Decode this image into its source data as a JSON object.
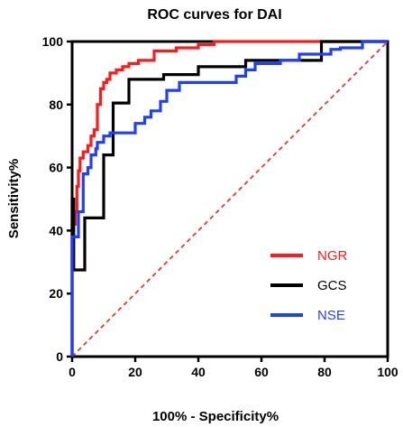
{
  "chart_data": {
    "type": "line",
    "title": "ROC curves for DAI",
    "xlabel": "100% - Specificity%",
    "ylabel": "Sensitivity%",
    "xlim": [
      0,
      100
    ],
    "ylim": [
      0,
      100
    ],
    "x_ticks": [
      0,
      20,
      40,
      60,
      80,
      100
    ],
    "y_ticks": [
      0,
      20,
      40,
      60,
      80,
      100
    ],
    "legend_position": "bottom-right",
    "reference_line": {
      "style": "dashed",
      "color": "#e53935",
      "from": [
        0,
        0
      ],
      "to": [
        100,
        100
      ]
    },
    "series": [
      {
        "name": "NGR",
        "color": "#ff1a1a",
        "points": [
          [
            0,
            0
          ],
          [
            0,
            42
          ],
          [
            1,
            42
          ],
          [
            1,
            46
          ],
          [
            1.5,
            46
          ],
          [
            1.5,
            54
          ],
          [
            2,
            54
          ],
          [
            2,
            59
          ],
          [
            2.5,
            59
          ],
          [
            2.5,
            63
          ],
          [
            3.5,
            63
          ],
          [
            3.5,
            65
          ],
          [
            5,
            65
          ],
          [
            5,
            67
          ],
          [
            6,
            67
          ],
          [
            6,
            70
          ],
          [
            7,
            70
          ],
          [
            7,
            72
          ],
          [
            8,
            72
          ],
          [
            8,
            80
          ],
          [
            9,
            80
          ],
          [
            9,
            85
          ],
          [
            10,
            85
          ],
          [
            10,
            87
          ],
          [
            11,
            87
          ],
          [
            11,
            88
          ],
          [
            12,
            88
          ],
          [
            12,
            90
          ],
          [
            14,
            90
          ],
          [
            14,
            91
          ],
          [
            16,
            91
          ],
          [
            16,
            92
          ],
          [
            18,
            92
          ],
          [
            18,
            93
          ],
          [
            21,
            93
          ],
          [
            21,
            94
          ],
          [
            26,
            94
          ],
          [
            26,
            97
          ],
          [
            33,
            97
          ],
          [
            33,
            98
          ],
          [
            40,
            98
          ],
          [
            40,
            99
          ],
          [
            45,
            99
          ],
          [
            45,
            100
          ],
          [
            100,
            100
          ]
        ]
      },
      {
        "name": "GCS",
        "color": "#000000",
        "points": [
          [
            0,
            0
          ],
          [
            0,
            50
          ],
          [
            0.5,
            50
          ],
          [
            0.5,
            27.5
          ],
          [
            4,
            27.5
          ],
          [
            4,
            44
          ],
          [
            10,
            44
          ],
          [
            10,
            64
          ],
          [
            13,
            64
          ],
          [
            13,
            80.5
          ],
          [
            18,
            80.5
          ],
          [
            18,
            88
          ],
          [
            29,
            88
          ],
          [
            29,
            89.5
          ],
          [
            40,
            89.5
          ],
          [
            40,
            92
          ],
          [
            55,
            92
          ],
          [
            55,
            94
          ],
          [
            79,
            94
          ],
          [
            79,
            100
          ],
          [
            100,
            100
          ]
        ]
      },
      {
        "name": "NSE",
        "color": "#1f3fff",
        "points": [
          [
            0,
            0
          ],
          [
            0,
            38
          ],
          [
            2,
            38
          ],
          [
            2,
            46
          ],
          [
            3.5,
            46
          ],
          [
            3.5,
            58
          ],
          [
            5,
            58
          ],
          [
            5,
            60
          ],
          [
            6,
            60
          ],
          [
            6,
            64
          ],
          [
            7.5,
            64
          ],
          [
            7.5,
            66
          ],
          [
            8,
            66
          ],
          [
            8,
            68
          ],
          [
            10,
            68
          ],
          [
            10,
            70
          ],
          [
            12,
            70
          ],
          [
            12,
            71
          ],
          [
            20,
            71
          ],
          [
            20,
            74
          ],
          [
            23,
            74
          ],
          [
            23,
            76
          ],
          [
            25,
            76
          ],
          [
            25,
            78
          ],
          [
            28,
            78
          ],
          [
            28,
            81
          ],
          [
            30,
            81
          ],
          [
            30,
            84.5
          ],
          [
            34,
            84.5
          ],
          [
            34,
            87
          ],
          [
            52,
            87
          ],
          [
            52,
            89
          ],
          [
            55,
            89
          ],
          [
            55,
            91
          ],
          [
            58,
            91
          ],
          [
            58,
            93
          ],
          [
            66,
            93
          ],
          [
            66,
            94
          ],
          [
            72,
            94
          ],
          [
            72,
            96
          ],
          [
            82,
            96
          ],
          [
            82,
            97.5
          ],
          [
            85,
            97.5
          ],
          [
            85,
            98
          ],
          [
            92,
            98
          ],
          [
            92,
            100
          ],
          [
            100,
            100
          ]
        ]
      }
    ]
  }
}
